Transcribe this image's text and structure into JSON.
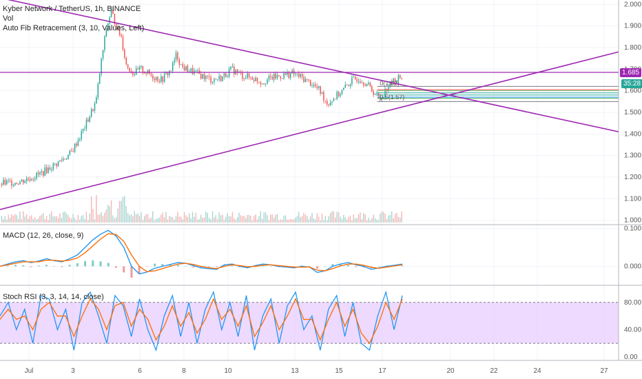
{
  "panels": {
    "price": {
      "title_line": "Kyber Network / TetherUS, 1h, BINANCE",
      "vol_label": "Vol",
      "fib_label": "Auto Fib Retracement (3, 10, Values, Left)"
    },
    "macd": {
      "title": "MACD (12, 26, close, 9)"
    },
    "stoch": {
      "title": "Stoch RSI (3, 3, 14, 14, close)"
    }
  },
  "price_tag": {
    "value": "1.685",
    "countdown": "35:28",
    "color": "#26a69a"
  },
  "colors": {
    "up": "#26a69a",
    "down": "#ef5350",
    "trendline": "#9c27b0",
    "macd": "#2196f3",
    "signal": "#ff6d00",
    "stoch_band": "#e7c9ff"
  },
  "fib_labels": [
    "0(1.62)",
    "0.5(1.57)"
  ],
  "chart_data": [
    {
      "type": "candlestick",
      "title": "Kyber Network / TetherUS, 1h, BINANCE",
      "ylim": [
        0.98,
        2.02
      ],
      "yticks": [
        2.0,
        1.9,
        1.8,
        1.7,
        1.6,
        1.5,
        1.4,
        1.3,
        1.2,
        1.1,
        1.0
      ],
      "ytick_labels": [
        "2.000",
        "1.900",
        "1.800",
        "1.700",
        "1.600",
        "1.500",
        "1.400",
        "1.300",
        "1.200",
        "1.100",
        "1.000"
      ],
      "xtick_labels": [
        "Jul",
        "3",
        "6",
        "8",
        "10",
        "13",
        "15",
        "17",
        "20",
        "22",
        "24",
        "27"
      ],
      "close_path": [
        [
          0,
          1.17
        ],
        [
          8,
          1.18
        ],
        [
          15,
          1.21
        ],
        [
          22,
          1.26
        ],
        [
          28,
          1.31
        ],
        [
          33,
          1.42
        ],
        [
          38,
          1.55
        ],
        [
          40,
          1.73
        ],
        [
          42,
          1.88
        ],
        [
          44,
          1.97
        ],
        [
          46,
          1.9
        ],
        [
          48,
          1.85
        ],
        [
          50,
          1.72
        ],
        [
          53,
          1.68
        ],
        [
          56,
          1.7
        ],
        [
          60,
          1.67
        ],
        [
          64,
          1.65
        ],
        [
          68,
          1.7
        ],
        [
          70,
          1.77
        ],
        [
          72,
          1.71
        ],
        [
          76,
          1.69
        ],
        [
          80,
          1.67
        ],
        [
          84,
          1.65
        ],
        [
          88,
          1.66
        ],
        [
          92,
          1.7
        ],
        [
          96,
          1.67
        ],
        [
          100,
          1.66
        ],
        [
          104,
          1.64
        ],
        [
          108,
          1.66
        ],
        [
          112,
          1.67
        ],
        [
          116,
          1.68
        ],
        [
          120,
          1.66
        ],
        [
          124,
          1.63
        ],
        [
          127,
          1.6
        ],
        [
          130,
          1.54
        ],
        [
          133,
          1.57
        ],
        [
          136,
          1.6
        ],
        [
          139,
          1.64
        ],
        [
          142,
          1.66
        ],
        [
          145,
          1.64
        ],
        [
          148,
          1.6
        ],
        [
          151,
          1.56
        ],
        [
          154,
          1.62
        ],
        [
          157,
          1.65
        ],
        [
          160,
          1.67
        ]
      ],
      "x_total": 246,
      "trendlines": [
        {
          "from": [
            0,
            2.03
          ],
          "to": [
            246,
            1.41
          ]
        },
        {
          "from": [
            0,
            1.05
          ],
          "to": [
            246,
            1.78
          ]
        }
      ],
      "hlines": [
        1.685,
        1.62,
        1.605,
        1.6,
        1.59,
        1.58,
        1.57,
        1.565,
        1.55
      ],
      "hline_colors": [
        "#9c27b0",
        "#787b86",
        "#ef5350",
        "#66bb6a",
        "#26a69a",
        "#26a69a",
        "#2196f3",
        "#4caf50",
        "#787b86"
      ],
      "volume_note": "volume histogram at bottom of price pane"
    },
    {
      "type": "line",
      "title": "MACD (12, 26, close, 9)",
      "ylim": [
        -0.05,
        0.11
      ],
      "yticks": [
        0.1,
        0.0
      ],
      "ytick_labels": [
        "0.100",
        "0.000"
      ],
      "series": [
        {
          "name": "MACD",
          "values": [
            0.0,
            0.006,
            0.012,
            0.015,
            0.01,
            0.014,
            0.02,
            0.015,
            0.012,
            0.02,
            0.03,
            0.05,
            0.07,
            0.085,
            0.095,
            0.08,
            0.05,
            0.0,
            -0.02,
            -0.015,
            -0.005,
            0.0,
            0.005,
            0.01,
            0.008,
            0.002,
            -0.004,
            -0.006,
            -0.008,
            0.004,
            0.006,
            0.0,
            -0.004,
            0.002,
            0.006,
            0.004,
            0.0,
            -0.002,
            -0.004,
            0.0,
            -0.002,
            -0.016,
            -0.012,
            0.0,
            0.006,
            0.01,
            0.004,
            0.0,
            -0.008,
            -0.004,
            0.0,
            0.003,
            0.006
          ]
        },
        {
          "name": "Signal",
          "values": [
            0.0,
            0.004,
            0.008,
            0.012,
            0.012,
            0.012,
            0.016,
            0.016,
            0.014,
            0.016,
            0.022,
            0.036,
            0.054,
            0.072,
            0.086,
            0.084,
            0.066,
            0.03,
            0.0,
            -0.014,
            -0.012,
            -0.006,
            0.0,
            0.006,
            0.008,
            0.005,
            0.0,
            -0.004,
            -0.006,
            0.0,
            0.004,
            0.002,
            -0.001,
            0.0,
            0.003,
            0.004,
            0.002,
            0.0,
            -0.002,
            -0.002,
            -0.002,
            -0.01,
            -0.012,
            -0.006,
            0.001,
            0.006,
            0.006,
            0.003,
            -0.003,
            -0.005,
            -0.002,
            0.001,
            0.004
          ]
        }
      ]
    },
    {
      "type": "line",
      "title": "Stoch RSI (3, 3, 14, 14, close)",
      "ylim": [
        -5,
        105
      ],
      "yticks": [
        80,
        40,
        0
      ],
      "ytick_labels": [
        "80.00",
        "40.00",
        "0.00"
      ],
      "bands": [
        20,
        80
      ],
      "series": [
        {
          "name": "K",
          "values": [
            60,
            80,
            40,
            70,
            20,
            90,
            85,
            40,
            70,
            10,
            80,
            95,
            60,
            20,
            90,
            75,
            30,
            85,
            40,
            10,
            60,
            90,
            30,
            80,
            20,
            70,
            95,
            40,
            80,
            30,
            90,
            10,
            60,
            85,
            20,
            75,
            95,
            40,
            60,
            10,
            70,
            90,
            30,
            80,
            20,
            10,
            60,
            95,
            40,
            90
          ]
        },
        {
          "name": "D",
          "values": [
            55,
            70,
            55,
            60,
            40,
            70,
            80,
            60,
            60,
            30,
            60,
            85,
            70,
            40,
            75,
            80,
            45,
            70,
            55,
            25,
            45,
            75,
            45,
            65,
            35,
            55,
            85,
            55,
            70,
            45,
            75,
            30,
            50,
            75,
            40,
            60,
            85,
            55,
            55,
            25,
            55,
            80,
            45,
            70,
            35,
            20,
            45,
            80,
            55,
            85
          ]
        }
      ]
    }
  ]
}
